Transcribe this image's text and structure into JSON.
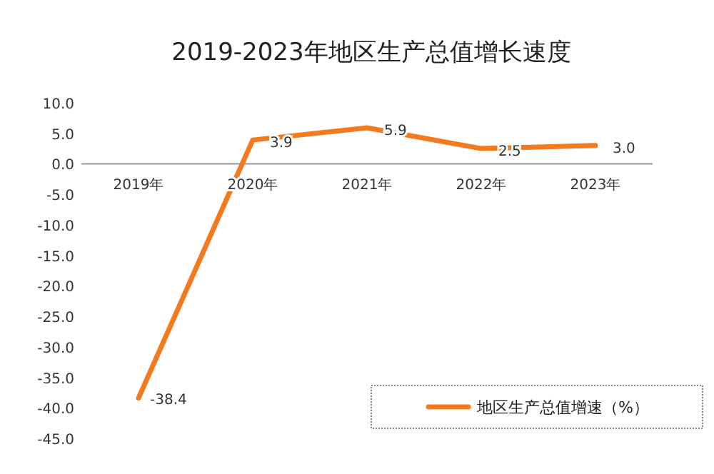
{
  "chart_data": {
    "type": "line",
    "title": "2019-2023年地区生产总值增长速度",
    "categories": [
      "2019年",
      "2020年",
      "2021年",
      "2022年",
      "2023年"
    ],
    "series": [
      {
        "name": "地区生产总值增速（%）",
        "color": "#f47a20",
        "values": [
          -38.4,
          3.9,
          5.9,
          2.5,
          3.0
        ],
        "value_labels": [
          "-38.4",
          "3.9",
          "5.9",
          "2.5",
          "3.0"
        ]
      }
    ],
    "ylim": [
      -45,
      10
    ],
    "yticks": [
      {
        "value": 10,
        "label": "10.0"
      },
      {
        "value": 5,
        "label": "5.0"
      },
      {
        "value": 0,
        "label": "0.0"
      },
      {
        "value": -5,
        "label": "-5.0"
      },
      {
        "value": -10,
        "label": "-10.0"
      },
      {
        "value": -15,
        "label": "-15.0"
      },
      {
        "value": -20,
        "label": "-20.0"
      },
      {
        "value": -25,
        "label": "-25.0"
      },
      {
        "value": -30,
        "label": "-30.0"
      },
      {
        "value": -35,
        "label": "-35.0"
      },
      {
        "value": -40,
        "label": "-40.0"
      },
      {
        "value": -45,
        "label": "-45.0"
      }
    ],
    "legend": "bottom right"
  }
}
